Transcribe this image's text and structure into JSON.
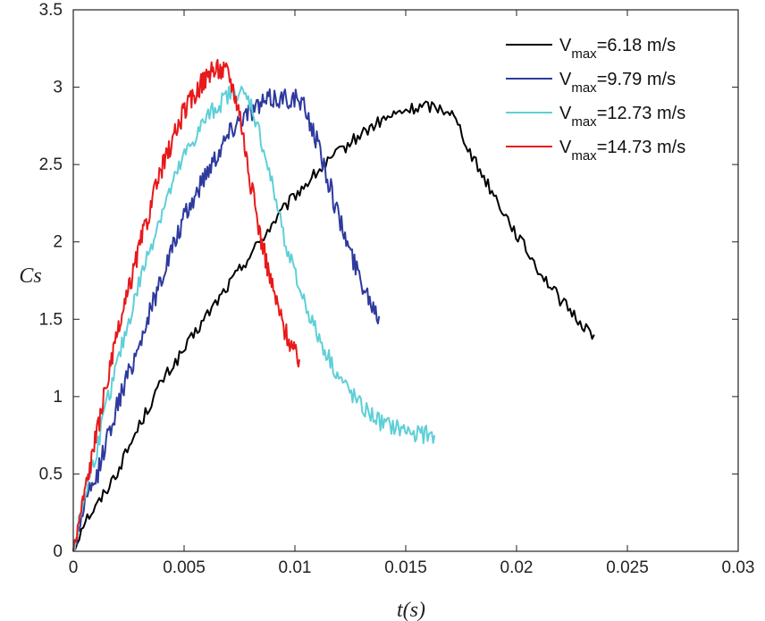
{
  "chart_data": {
    "type": "line",
    "title": "",
    "xlabel": "t(s)",
    "ylabel": "Cs",
    "xlim": [
      0,
      0.03
    ],
    "ylim": [
      0,
      3.5
    ],
    "xticks": [
      0,
      0.005,
      0.01,
      0.015,
      0.02,
      0.025,
      0.03
    ],
    "xtick_labels": [
      "0",
      "0.005",
      "0.01",
      "0.015",
      "0.02",
      "0.025",
      "0.03"
    ],
    "yticks": [
      0,
      0.5,
      1,
      1.5,
      2,
      2.5,
      3,
      3.5
    ],
    "ytick_labels": [
      "0",
      "0.5",
      "1",
      "1.5",
      "2",
      "2.5",
      "3",
      "3.5"
    ],
    "grid": false,
    "legend_position": "top-right",
    "series": [
      {
        "name": "Vmax=6.18 m/s",
        "legend_main": "V",
        "legend_sub": "max",
        "legend_value": "=6.18 m/s",
        "color": "#000000",
        "noise": 0.04,
        "x": [
          0,
          0.0005,
          0.001,
          0.0015,
          0.002,
          0.003,
          0.004,
          0.005,
          0.006,
          0.007,
          0.008,
          0.009,
          0.01,
          0.011,
          0.012,
          0.013,
          0.014,
          0.015,
          0.016,
          0.017,
          0.0175,
          0.018,
          0.019,
          0.02,
          0.021,
          0.022,
          0.023,
          0.0235
        ],
        "y": [
          0,
          0.2,
          0.28,
          0.4,
          0.52,
          0.82,
          1.1,
          1.3,
          1.52,
          1.72,
          1.92,
          2.12,
          2.3,
          2.45,
          2.58,
          2.7,
          2.79,
          2.85,
          2.88,
          2.85,
          2.72,
          2.55,
          2.3,
          2.05,
          1.82,
          1.62,
          1.46,
          1.4
        ]
      },
      {
        "name": "Vmax=9.79 m/s",
        "legend_main": "V",
        "legend_sub": "max",
        "legend_value": "=9.79 m/s",
        "color": "#2e3a9e",
        "noise": 0.07,
        "x": [
          0,
          0.0005,
          0.001,
          0.0015,
          0.002,
          0.003,
          0.004,
          0.005,
          0.006,
          0.007,
          0.0075,
          0.008,
          0.009,
          0.01,
          0.0105,
          0.011,
          0.0115,
          0.012,
          0.0125,
          0.013,
          0.0135,
          0.0138
        ],
        "y": [
          0,
          0.3,
          0.45,
          0.72,
          0.95,
          1.35,
          1.78,
          2.15,
          2.45,
          2.7,
          2.8,
          2.85,
          2.93,
          2.93,
          2.85,
          2.65,
          2.4,
          2.15,
          1.93,
          1.75,
          1.6,
          1.52
        ]
      },
      {
        "name": "Vmax=12.73 m/s",
        "legend_main": "V",
        "legend_sub": "max",
        "legend_value": "=12.73 m/s",
        "color": "#5fcfd8",
        "noise": 0.06,
        "x": [
          0,
          0.0005,
          0.001,
          0.0015,
          0.002,
          0.003,
          0.004,
          0.005,
          0.006,
          0.007,
          0.0075,
          0.008,
          0.0085,
          0.009,
          0.0095,
          0.01,
          0.011,
          0.012,
          0.013,
          0.014,
          0.015,
          0.016,
          0.0163
        ],
        "y": [
          0,
          0.35,
          0.62,
          0.95,
          1.22,
          1.75,
          2.2,
          2.55,
          2.8,
          2.95,
          2.97,
          2.9,
          2.65,
          2.35,
          2.05,
          1.78,
          1.4,
          1.12,
          0.93,
          0.82,
          0.78,
          0.75,
          0.75
        ]
      },
      {
        "name": "Vmax=14.73 m/s",
        "legend_main": "V",
        "legend_sub": "max",
        "legend_value": "=14.73 m/s",
        "color": "#e8191b",
        "noise": 0.07,
        "x": [
          0,
          0.0005,
          0.001,
          0.0015,
          0.002,
          0.003,
          0.004,
          0.005,
          0.006,
          0.0065,
          0.007,
          0.0075,
          0.008,
          0.0085,
          0.009,
          0.0095,
          0.01,
          0.0102
        ],
        "y": [
          0,
          0.38,
          0.72,
          1.08,
          1.4,
          1.98,
          2.48,
          2.85,
          3.07,
          3.12,
          3.1,
          2.85,
          2.38,
          2.0,
          1.7,
          1.45,
          1.28,
          1.24
        ]
      }
    ]
  }
}
